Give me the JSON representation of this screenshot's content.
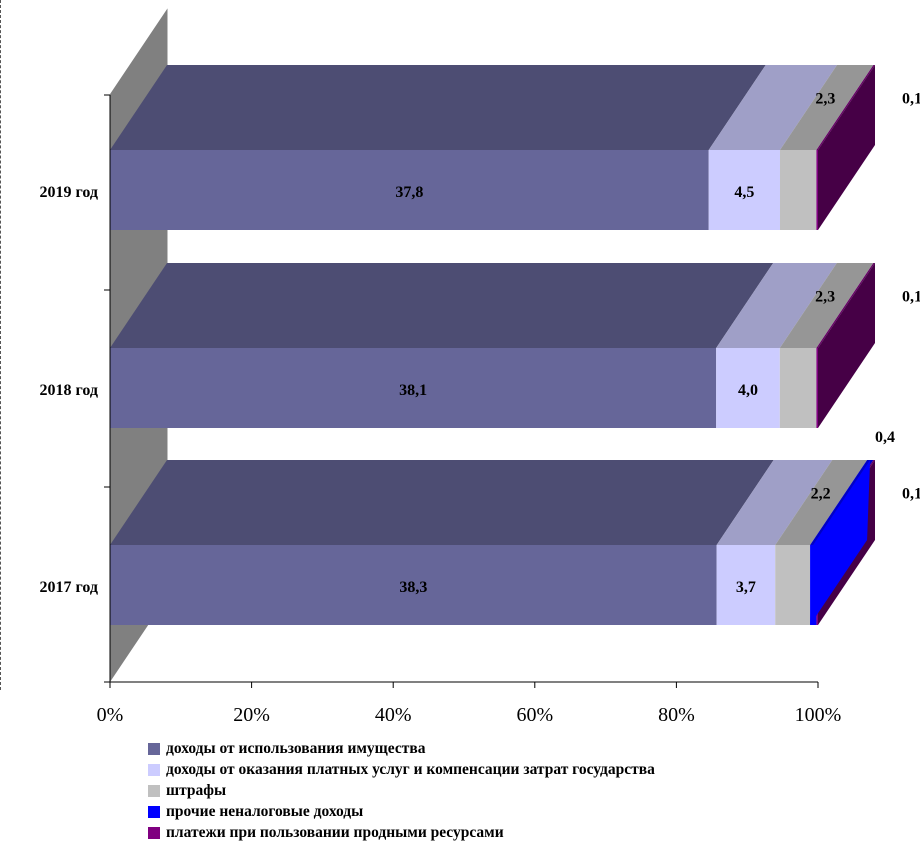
{
  "chart_data": {
    "type": "bar",
    "orientation": "horizontal",
    "stacked": "percent",
    "three_d": true,
    "categories": [
      "2019 год",
      "2018 год",
      "2017 год"
    ],
    "series": [
      {
        "name": "доходы от использования имущества",
        "color": "#666699",
        "values": [
          37.8,
          38.1,
          38.3
        ],
        "labels": [
          "37,8",
          "38,1",
          "38,3"
        ]
      },
      {
        "name": "доходы от оказания платных услуг и компенсации затрат государства",
        "color": "#CCCCFF",
        "values": [
          4.5,
          4.0,
          3.7
        ],
        "labels": [
          "4,5",
          "4,0",
          "3,7"
        ]
      },
      {
        "name": "штрафы",
        "color": "#C0C0C0",
        "values": [
          2.3,
          2.3,
          2.2
        ],
        "labels": [
          "2,3",
          "2,3",
          "2,2"
        ]
      },
      {
        "name": "прочие неналоговые доходы",
        "color": "#0000FF",
        "values": [
          0,
          0,
          0.4
        ],
        "labels": [
          "",
          "",
          "0,4"
        ]
      },
      {
        "name": "платежи при пользовании продными ресурсами",
        "color": "#800080",
        "values": [
          0.1,
          0.1,
          0.1
        ],
        "labels": [
          "0,1",
          "0,1",
          "0,1"
        ]
      }
    ],
    "x_axis": {
      "min": 0,
      "max": 100,
      "ticks": [
        "0%",
        "20%",
        "40%",
        "60%",
        "80%",
        "100%"
      ]
    },
    "grid": false,
    "legend_position": "bottom"
  }
}
